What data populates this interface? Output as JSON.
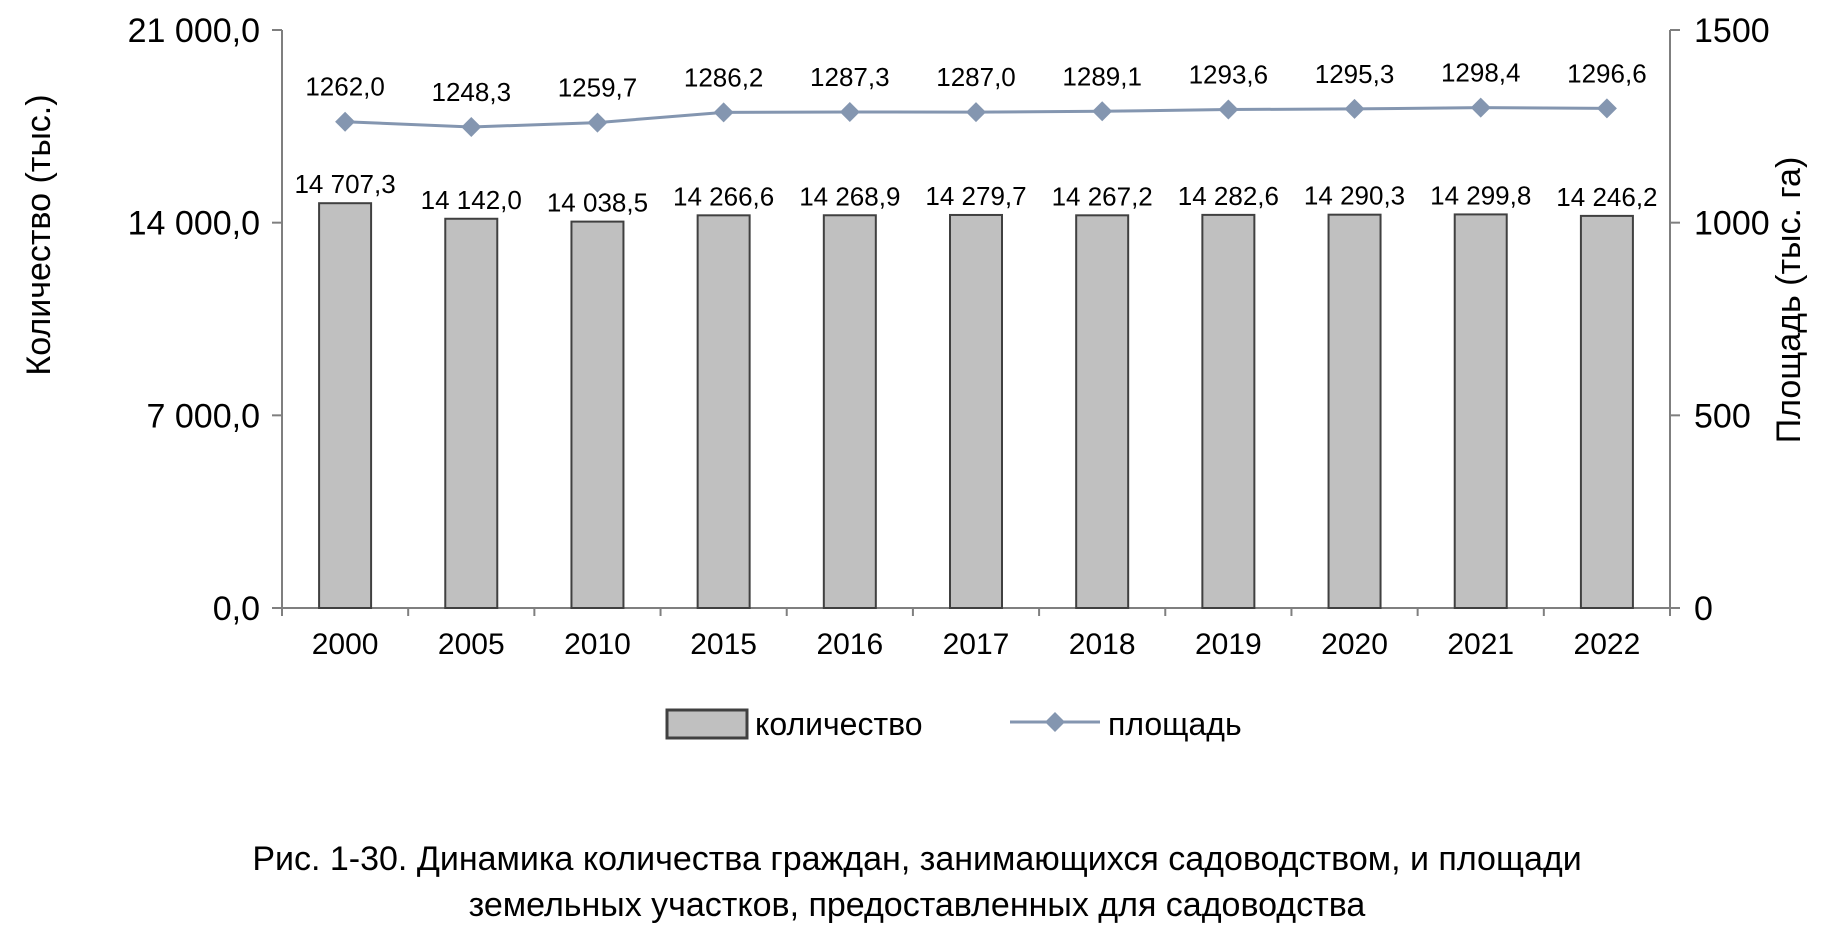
{
  "chart_data": {
    "type": "bar",
    "categories": [
      "2000",
      "2005",
      "2010",
      "2015",
      "2016",
      "2017",
      "2018",
      "2019",
      "2020",
      "2021",
      "2022"
    ],
    "series": [
      {
        "name": "количество",
        "type": "bar",
        "axis": "left",
        "values": [
          14707.3,
          14142.0,
          14038.5,
          14266.6,
          14268.9,
          14279.7,
          14267.2,
          14282.6,
          14290.3,
          14299.8,
          14246.2
        ],
        "labels": [
          "14 707,3",
          "14 142,0",
          "14 038,5",
          "14 266,6",
          "14 268,9",
          "14 279,7",
          "14 267,2",
          "14 282,6",
          "14 290,3",
          "14 299,8",
          "14 246,2"
        ],
        "color": "#c0c0c0"
      },
      {
        "name": "площадь",
        "type": "line",
        "axis": "right",
        "values": [
          1262.0,
          1248.3,
          1259.7,
          1286.2,
          1287.3,
          1287.0,
          1289.1,
          1293.6,
          1295.3,
          1298.4,
          1296.6
        ],
        "labels": [
          "1262,0",
          "1248,3",
          "1259,7",
          "1286,2",
          "1287,3",
          "1287,0",
          "1289,1",
          "1293,6",
          "1295,3",
          "1298,4",
          "1296,6"
        ],
        "color": "#8496b0"
      }
    ],
    "ylabel": "Количество (тыс.)",
    "y2label": "Площадь (тыс. га)",
    "ylim": [
      0,
      21000
    ],
    "y2lim": [
      0,
      1500
    ],
    "yticks": [
      "0,0",
      "7 000,0",
      "14 000,0",
      "21 000,0"
    ],
    "y2ticks": [
      "0",
      "500",
      "1000",
      "1500"
    ],
    "grid": false,
    "legend_position": "bottom"
  },
  "caption": {
    "line1": "Рис. 1-30. Динамика количества граждан, занимающихся садоводством, и площади",
    "line2": "земельных участков, предоставленных для садоводства"
  }
}
